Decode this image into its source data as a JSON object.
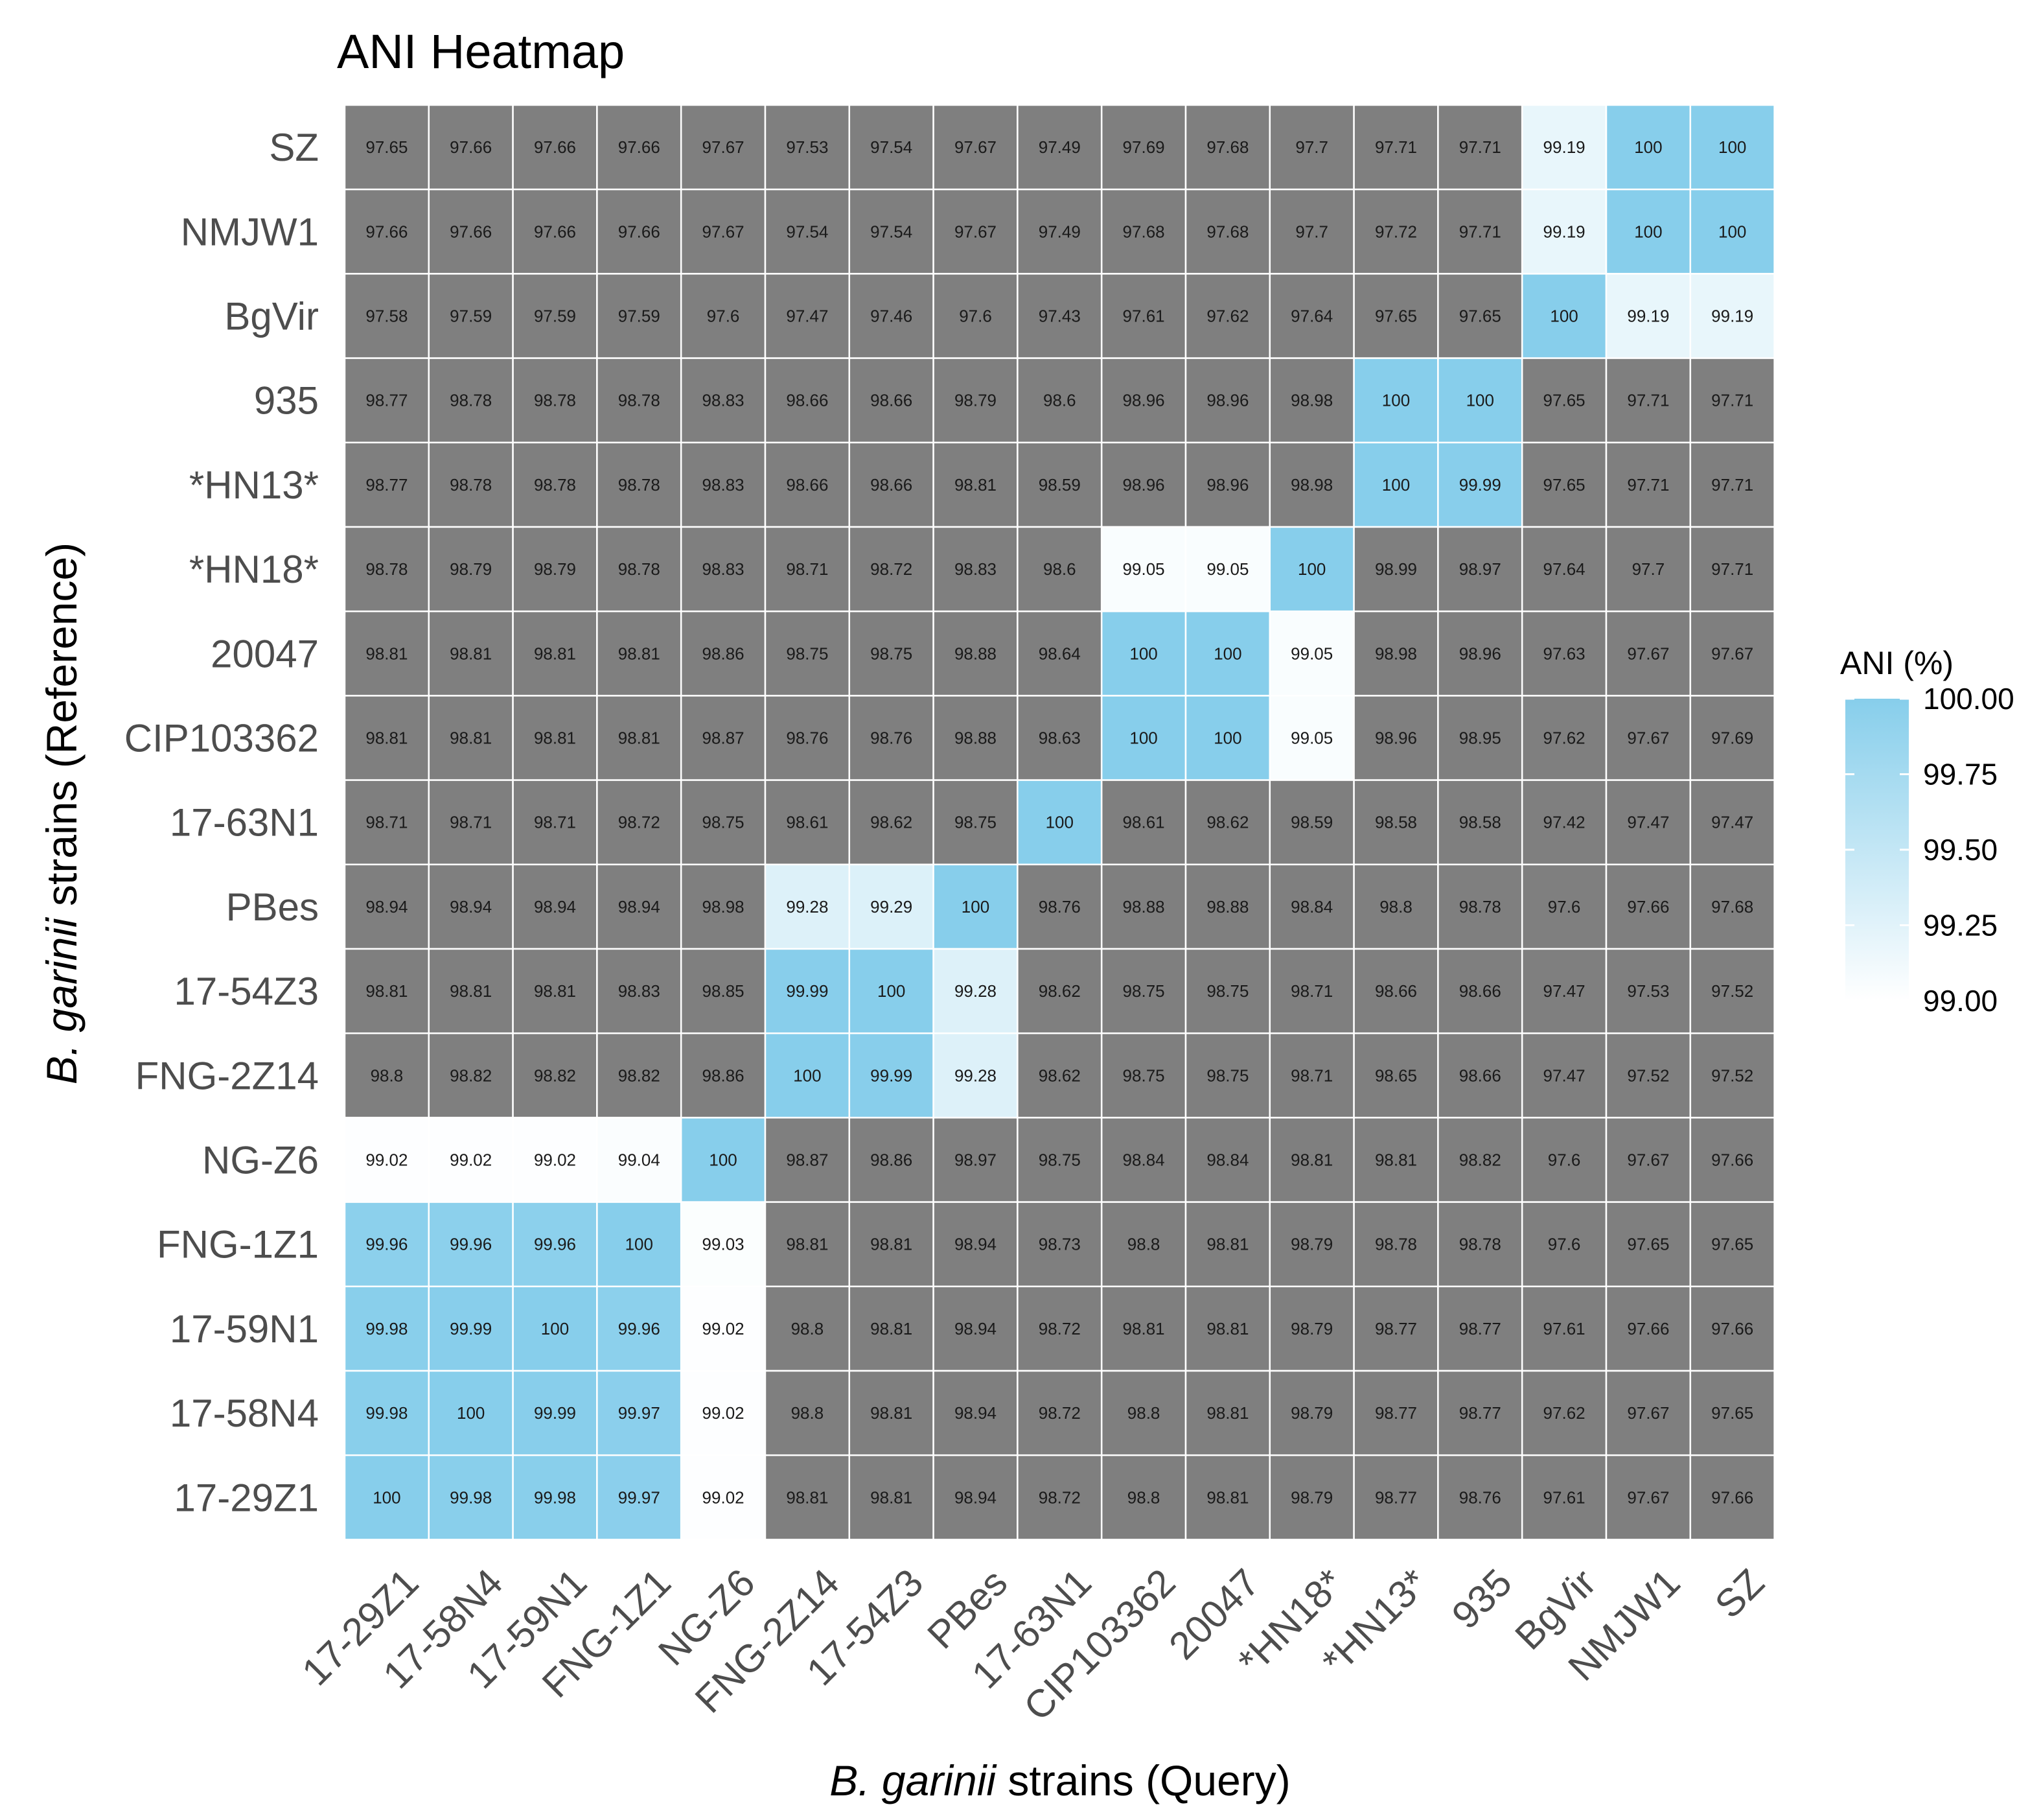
{
  "chart_data": {
    "type": "heatmap",
    "title": "ANI Heatmap",
    "xlabel_italic": "B. garinii",
    "xlabel_rest": " strains (Query)",
    "ylabel_italic": "B. garinii",
    "ylabel_rest": " strains (Reference)",
    "x_categories": [
      "17-29Z1",
      "17-58N4",
      "17-59N1",
      "FNG-1Z1",
      "NG-Z6",
      "FNG-2Z14",
      "17-54Z3",
      "PBes",
      "17-63N1",
      "CIP103362",
      "20047",
      "*HN18*",
      "*HN13*",
      "935",
      "BgVir",
      "NMJW1",
      "SZ"
    ],
    "y_categories": [
      "SZ",
      "NMJW1",
      "BgVir",
      "935",
      "*HN13*",
      "*HN18*",
      "20047",
      "CIP103362",
      "17-63N1",
      "PBes",
      "17-54Z3",
      "FNG-2Z14",
      "NG-Z6",
      "FNG-1Z1",
      "17-59N1",
      "17-58N4",
      "17-29Z1"
    ],
    "values": [
      [
        "97.65",
        "97.66",
        "97.66",
        "97.66",
        "97.67",
        "97.53",
        "97.54",
        "97.67",
        "97.49",
        "97.69",
        "97.68",
        "97.7",
        "97.71",
        "97.71",
        "99.19",
        "100",
        "100"
      ],
      [
        "97.66",
        "97.66",
        "97.66",
        "97.66",
        "97.67",
        "97.54",
        "97.54",
        "97.67",
        "97.49",
        "97.68",
        "97.68",
        "97.7",
        "97.72",
        "97.71",
        "99.19",
        "100",
        "100"
      ],
      [
        "97.58",
        "97.59",
        "97.59",
        "97.59",
        "97.6",
        "97.47",
        "97.46",
        "97.6",
        "97.43",
        "97.61",
        "97.62",
        "97.64",
        "97.65",
        "97.65",
        "100",
        "99.19",
        "99.19"
      ],
      [
        "98.77",
        "98.78",
        "98.78",
        "98.78",
        "98.83",
        "98.66",
        "98.66",
        "98.79",
        "98.6",
        "98.96",
        "98.96",
        "98.98",
        "100",
        "100",
        "97.65",
        "97.71",
        "97.71"
      ],
      [
        "98.77",
        "98.78",
        "98.78",
        "98.78",
        "98.83",
        "98.66",
        "98.66",
        "98.81",
        "98.59",
        "98.96",
        "98.96",
        "98.98",
        "100",
        "99.99",
        "97.65",
        "97.71",
        "97.71"
      ],
      [
        "98.78",
        "98.79",
        "98.79",
        "98.78",
        "98.83",
        "98.71",
        "98.72",
        "98.83",
        "98.6",
        "99.05",
        "99.05",
        "100",
        "98.99",
        "98.97",
        "97.64",
        "97.7",
        "97.71"
      ],
      [
        "98.81",
        "98.81",
        "98.81",
        "98.81",
        "98.86",
        "98.75",
        "98.75",
        "98.88",
        "98.64",
        "100",
        "100",
        "99.05",
        "98.98",
        "98.96",
        "97.63",
        "97.67",
        "97.67"
      ],
      [
        "98.81",
        "98.81",
        "98.81",
        "98.81",
        "98.87",
        "98.76",
        "98.76",
        "98.88",
        "98.63",
        "100",
        "100",
        "99.05",
        "98.96",
        "98.95",
        "97.62",
        "97.67",
        "97.69"
      ],
      [
        "98.71",
        "98.71",
        "98.71",
        "98.72",
        "98.75",
        "98.61",
        "98.62",
        "98.75",
        "100",
        "98.61",
        "98.62",
        "98.59",
        "98.58",
        "98.58",
        "97.42",
        "97.47",
        "97.47"
      ],
      [
        "98.94",
        "98.94",
        "98.94",
        "98.94",
        "98.98",
        "99.28",
        "99.29",
        "100",
        "98.76",
        "98.88",
        "98.88",
        "98.84",
        "98.8",
        "98.78",
        "97.6",
        "97.66",
        "97.68"
      ],
      [
        "98.81",
        "98.81",
        "98.81",
        "98.83",
        "98.85",
        "99.99",
        "100",
        "99.28",
        "98.62",
        "98.75",
        "98.75",
        "98.71",
        "98.66",
        "98.66",
        "97.47",
        "97.53",
        "97.52"
      ],
      [
        "98.8",
        "98.82",
        "98.82",
        "98.82",
        "98.86",
        "100",
        "99.99",
        "99.28",
        "98.62",
        "98.75",
        "98.75",
        "98.71",
        "98.65",
        "98.66",
        "97.47",
        "97.52",
        "97.52"
      ],
      [
        "99.02",
        "99.02",
        "99.02",
        "99.04",
        "100",
        "98.87",
        "98.86",
        "98.97",
        "98.75",
        "98.84",
        "98.84",
        "98.81",
        "98.81",
        "98.82",
        "97.6",
        "97.67",
        "97.66"
      ],
      [
        "99.96",
        "99.96",
        "99.96",
        "100",
        "99.03",
        "98.81",
        "98.81",
        "98.94",
        "98.73",
        "98.8",
        "98.81",
        "98.79",
        "98.78",
        "98.78",
        "97.6",
        "97.65",
        "97.65"
      ],
      [
        "99.98",
        "99.99",
        "100",
        "99.96",
        "99.02",
        "98.8",
        "98.81",
        "98.94",
        "98.72",
        "98.81",
        "98.81",
        "98.79",
        "98.77",
        "98.77",
        "97.61",
        "97.66",
        "97.66"
      ],
      [
        "99.98",
        "100",
        "99.99",
        "99.97",
        "99.02",
        "98.8",
        "98.81",
        "98.94",
        "98.72",
        "98.8",
        "98.81",
        "98.79",
        "98.77",
        "98.77",
        "97.62",
        "97.67",
        "97.65"
      ],
      [
        "100",
        "99.98",
        "99.98",
        "99.97",
        "99.02",
        "98.81",
        "98.81",
        "98.94",
        "98.72",
        "98.8",
        "98.81",
        "98.79",
        "98.77",
        "98.76",
        "97.61",
        "97.67",
        "97.66"
      ]
    ],
    "color_scale": {
      "min": 99.0,
      "max": 100.0,
      "low_color": "#ffffff",
      "high_color": "#87ceeb",
      "out_of_range_color": "#7f7f7f"
    },
    "legend": {
      "title": "ANI (%)",
      "ticks": [
        "100.00",
        "99.75",
        "99.50",
        "99.25",
        "99.00"
      ],
      "tick_values": [
        100.0,
        99.75,
        99.5,
        99.25,
        99.0
      ],
      "placement": "right"
    }
  }
}
